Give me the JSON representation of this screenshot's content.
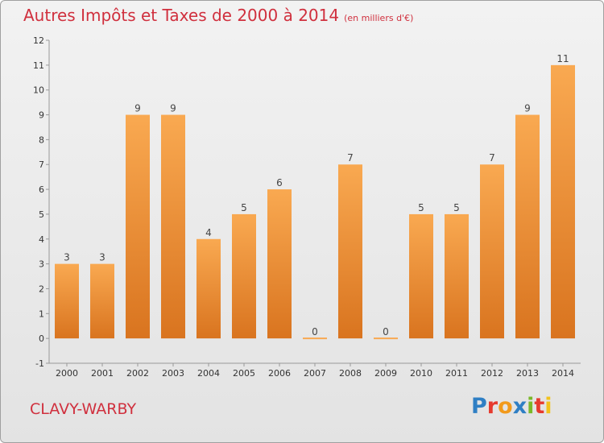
{
  "header": {
    "title": "Autres Impôts et Taxes de 2000 à 2014",
    "unit": "(en milliers d'€)"
  },
  "footer": {
    "commune": "CLAVY-WARBY",
    "logo": "Proxiti"
  },
  "colors": {
    "bar_top": "#f9a951",
    "bar_bottom": "#d9741f",
    "title": "#d0303e"
  },
  "chart_data": {
    "type": "bar",
    "title": "Autres Impôts et Taxes de 2000 à 2014",
    "subtitle": "(en milliers d'€)",
    "categories": [
      "2000",
      "2001",
      "2002",
      "2003",
      "2004",
      "2005",
      "2006",
      "2007",
      "2008",
      "2009",
      "2010",
      "2011",
      "2012",
      "2013",
      "2014"
    ],
    "values": [
      3,
      3,
      9,
      9,
      4,
      5,
      6,
      0,
      7,
      0,
      5,
      5,
      7,
      9,
      11
    ],
    "ylim": [
      -1,
      12
    ],
    "yticks": [
      -1,
      0,
      1,
      2,
      3,
      4,
      5,
      6,
      7,
      8,
      9,
      10,
      11,
      12
    ],
    "grid": false,
    "data_labels": true
  }
}
